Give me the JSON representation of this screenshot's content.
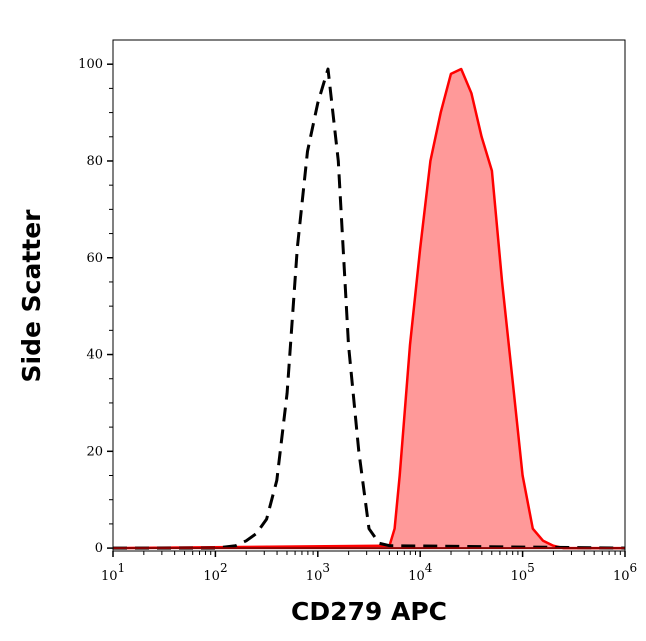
{
  "chart_data": {
    "type": "area",
    "title": "",
    "xlabel": "CD279 APC",
    "ylabel": "Side Scatter",
    "xscale": "log",
    "xlim": [
      10,
      1000000
    ],
    "ylim": [
      -0.6,
      105
    ],
    "x_ticks": [
      {
        "base": "10",
        "exp": "1",
        "value": 10
      },
      {
        "base": "10",
        "exp": "2",
        "value": 100
      },
      {
        "base": "10",
        "exp": "3",
        "value": 1000
      },
      {
        "base": "10",
        "exp": "4",
        "value": 10000
      },
      {
        "base": "10",
        "exp": "5",
        "value": 100000
      },
      {
        "base": "10",
        "exp": "6",
        "value": 1000000
      }
    ],
    "y_ticks": [
      "0",
      "20",
      "40",
      "60",
      "80",
      "100"
    ],
    "grid": false,
    "series": [
      {
        "style": "dashed-line",
        "color": "#000000",
        "x": [
          10,
          100,
          158,
          200,
          251,
          316,
          398,
          501,
          631,
          794,
          1000,
          1259,
          1585,
          1995,
          2512,
          3162,
          3981,
          5012,
          1000000
        ],
        "y": [
          0,
          0,
          0.5,
          1.5,
          3,
          6,
          14,
          32,
          62,
          82,
          92,
          99,
          80,
          42,
          20,
          4,
          1,
          0.5,
          0
        ]
      },
      {
        "style": "filled-area",
        "color": "#ff0000",
        "fill": "#ff9999",
        "x": [
          10,
          5012,
          5623,
          6310,
          7943,
          10000,
          12589,
          15849,
          19953,
          25119,
          31623,
          39811,
          50119,
          63096,
          79433,
          100000,
          125893,
          158489,
          199526,
          251189,
          1000000
        ],
        "y": [
          0,
          0.5,
          4,
          15,
          42,
          62,
          80,
          90,
          98,
          99,
          94,
          85,
          78,
          55,
          35,
          15,
          4,
          1.5,
          0.5,
          0,
          0
        ]
      }
    ]
  }
}
